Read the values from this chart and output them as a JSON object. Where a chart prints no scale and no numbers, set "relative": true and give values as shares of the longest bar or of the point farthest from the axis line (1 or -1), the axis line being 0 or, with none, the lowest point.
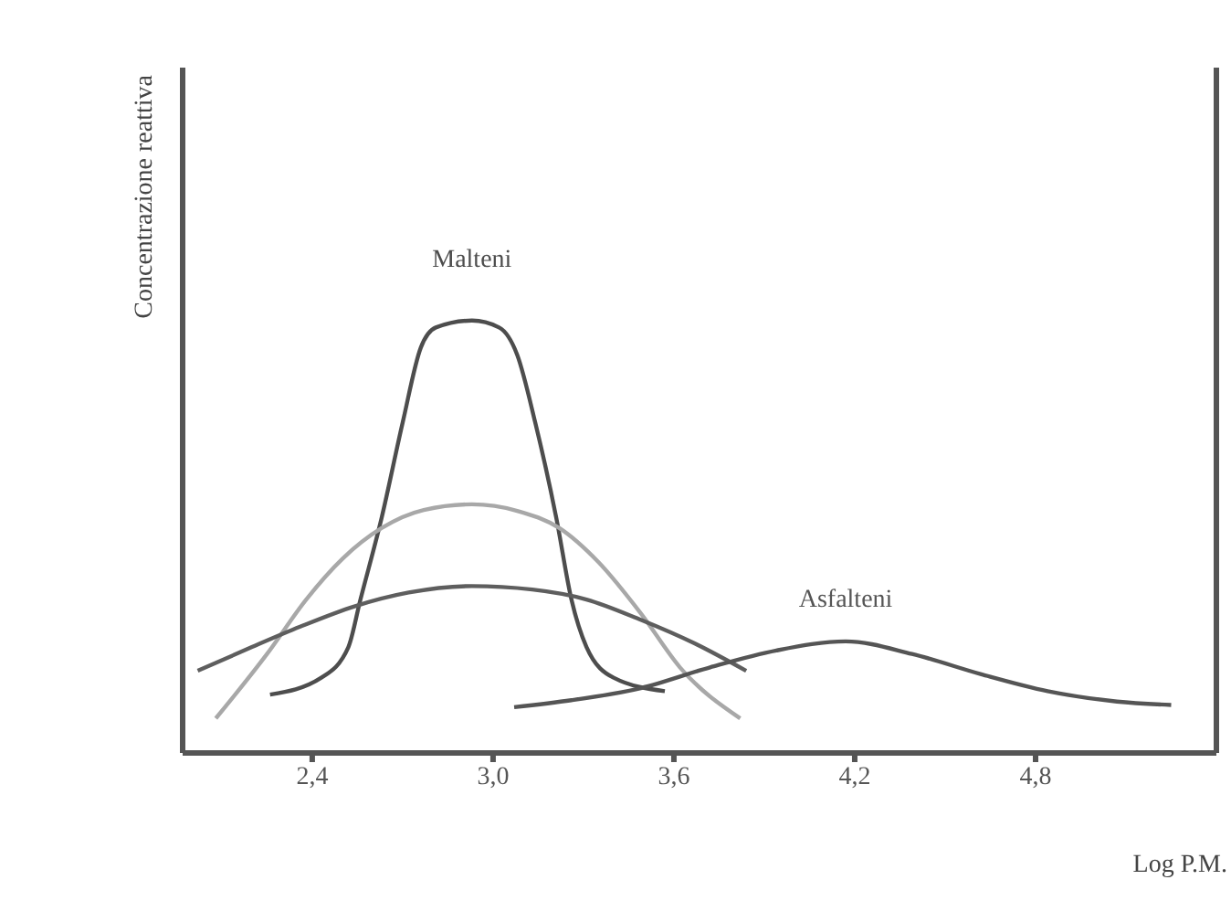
{
  "chart_data": {
    "type": "line",
    "xlabel": "Log P.M.",
    "ylabel": "Concentrazione reattiva",
    "relative": true,
    "xlim": [
      1.97,
      5.4
    ],
    "xticks": [
      {
        "value": 2.4,
        "label": "2,4"
      },
      {
        "value": 3.0,
        "label": "3,0"
      },
      {
        "value": 3.6,
        "label": "3,6"
      },
      {
        "value": 4.2,
        "label": "4,2"
      },
      {
        "value": 4.8,
        "label": "4,8"
      }
    ],
    "marker": "none",
    "line_style": "solid",
    "series": [
      {
        "name": "Malteni",
        "color": "#4d4d4d",
        "x": [
          2.26,
          2.43,
          2.52,
          2.56,
          2.63,
          2.7,
          2.76,
          2.81,
          2.93,
          3.02,
          3.08,
          3.14,
          3.21,
          3.26,
          3.31,
          3.4,
          3.57
        ],
        "values": [
          0.135,
          0.174,
          0.245,
          0.355,
          0.543,
          0.764,
          0.937,
          0.984,
          1,
          0.984,
          0.921,
          0.764,
          0.543,
          0.355,
          0.245,
          0.174,
          0.143
        ]
      },
      {
        "color": "#a8a8a8",
        "x": [
          2.08,
          2.25,
          2.38,
          2.5,
          2.63,
          2.77,
          2.93,
          3.08,
          3.22,
          3.35,
          3.49,
          3.62,
          3.82
        ],
        "values": [
          0.08,
          0.229,
          0.355,
          0.449,
          0.52,
          0.562,
          0.575,
          0.56,
          0.52,
          0.441,
          0.323,
          0.198,
          0.08
        ]
      },
      {
        "color": "#5e5e5e",
        "x": [
          2.02,
          2.2,
          2.36,
          2.54,
          2.72,
          2.93,
          3.13,
          3.31,
          3.49,
          3.67,
          3.84
        ],
        "values": [
          0.19,
          0.245,
          0.292,
          0.339,
          0.371,
          0.386,
          0.378,
          0.355,
          0.308,
          0.253,
          0.19
        ]
      },
      {
        "name": "Asfalteni",
        "color": "#555555",
        "x": [
          3.07,
          3.26,
          3.49,
          3.72,
          3.94,
          4.17,
          4.39,
          4.62,
          4.84,
          5.07,
          5.25
        ],
        "values": [
          0.106,
          0.122,
          0.15,
          0.198,
          0.237,
          0.258,
          0.229,
          0.182,
          0.143,
          0.119,
          0.111
        ]
      }
    ]
  }
}
